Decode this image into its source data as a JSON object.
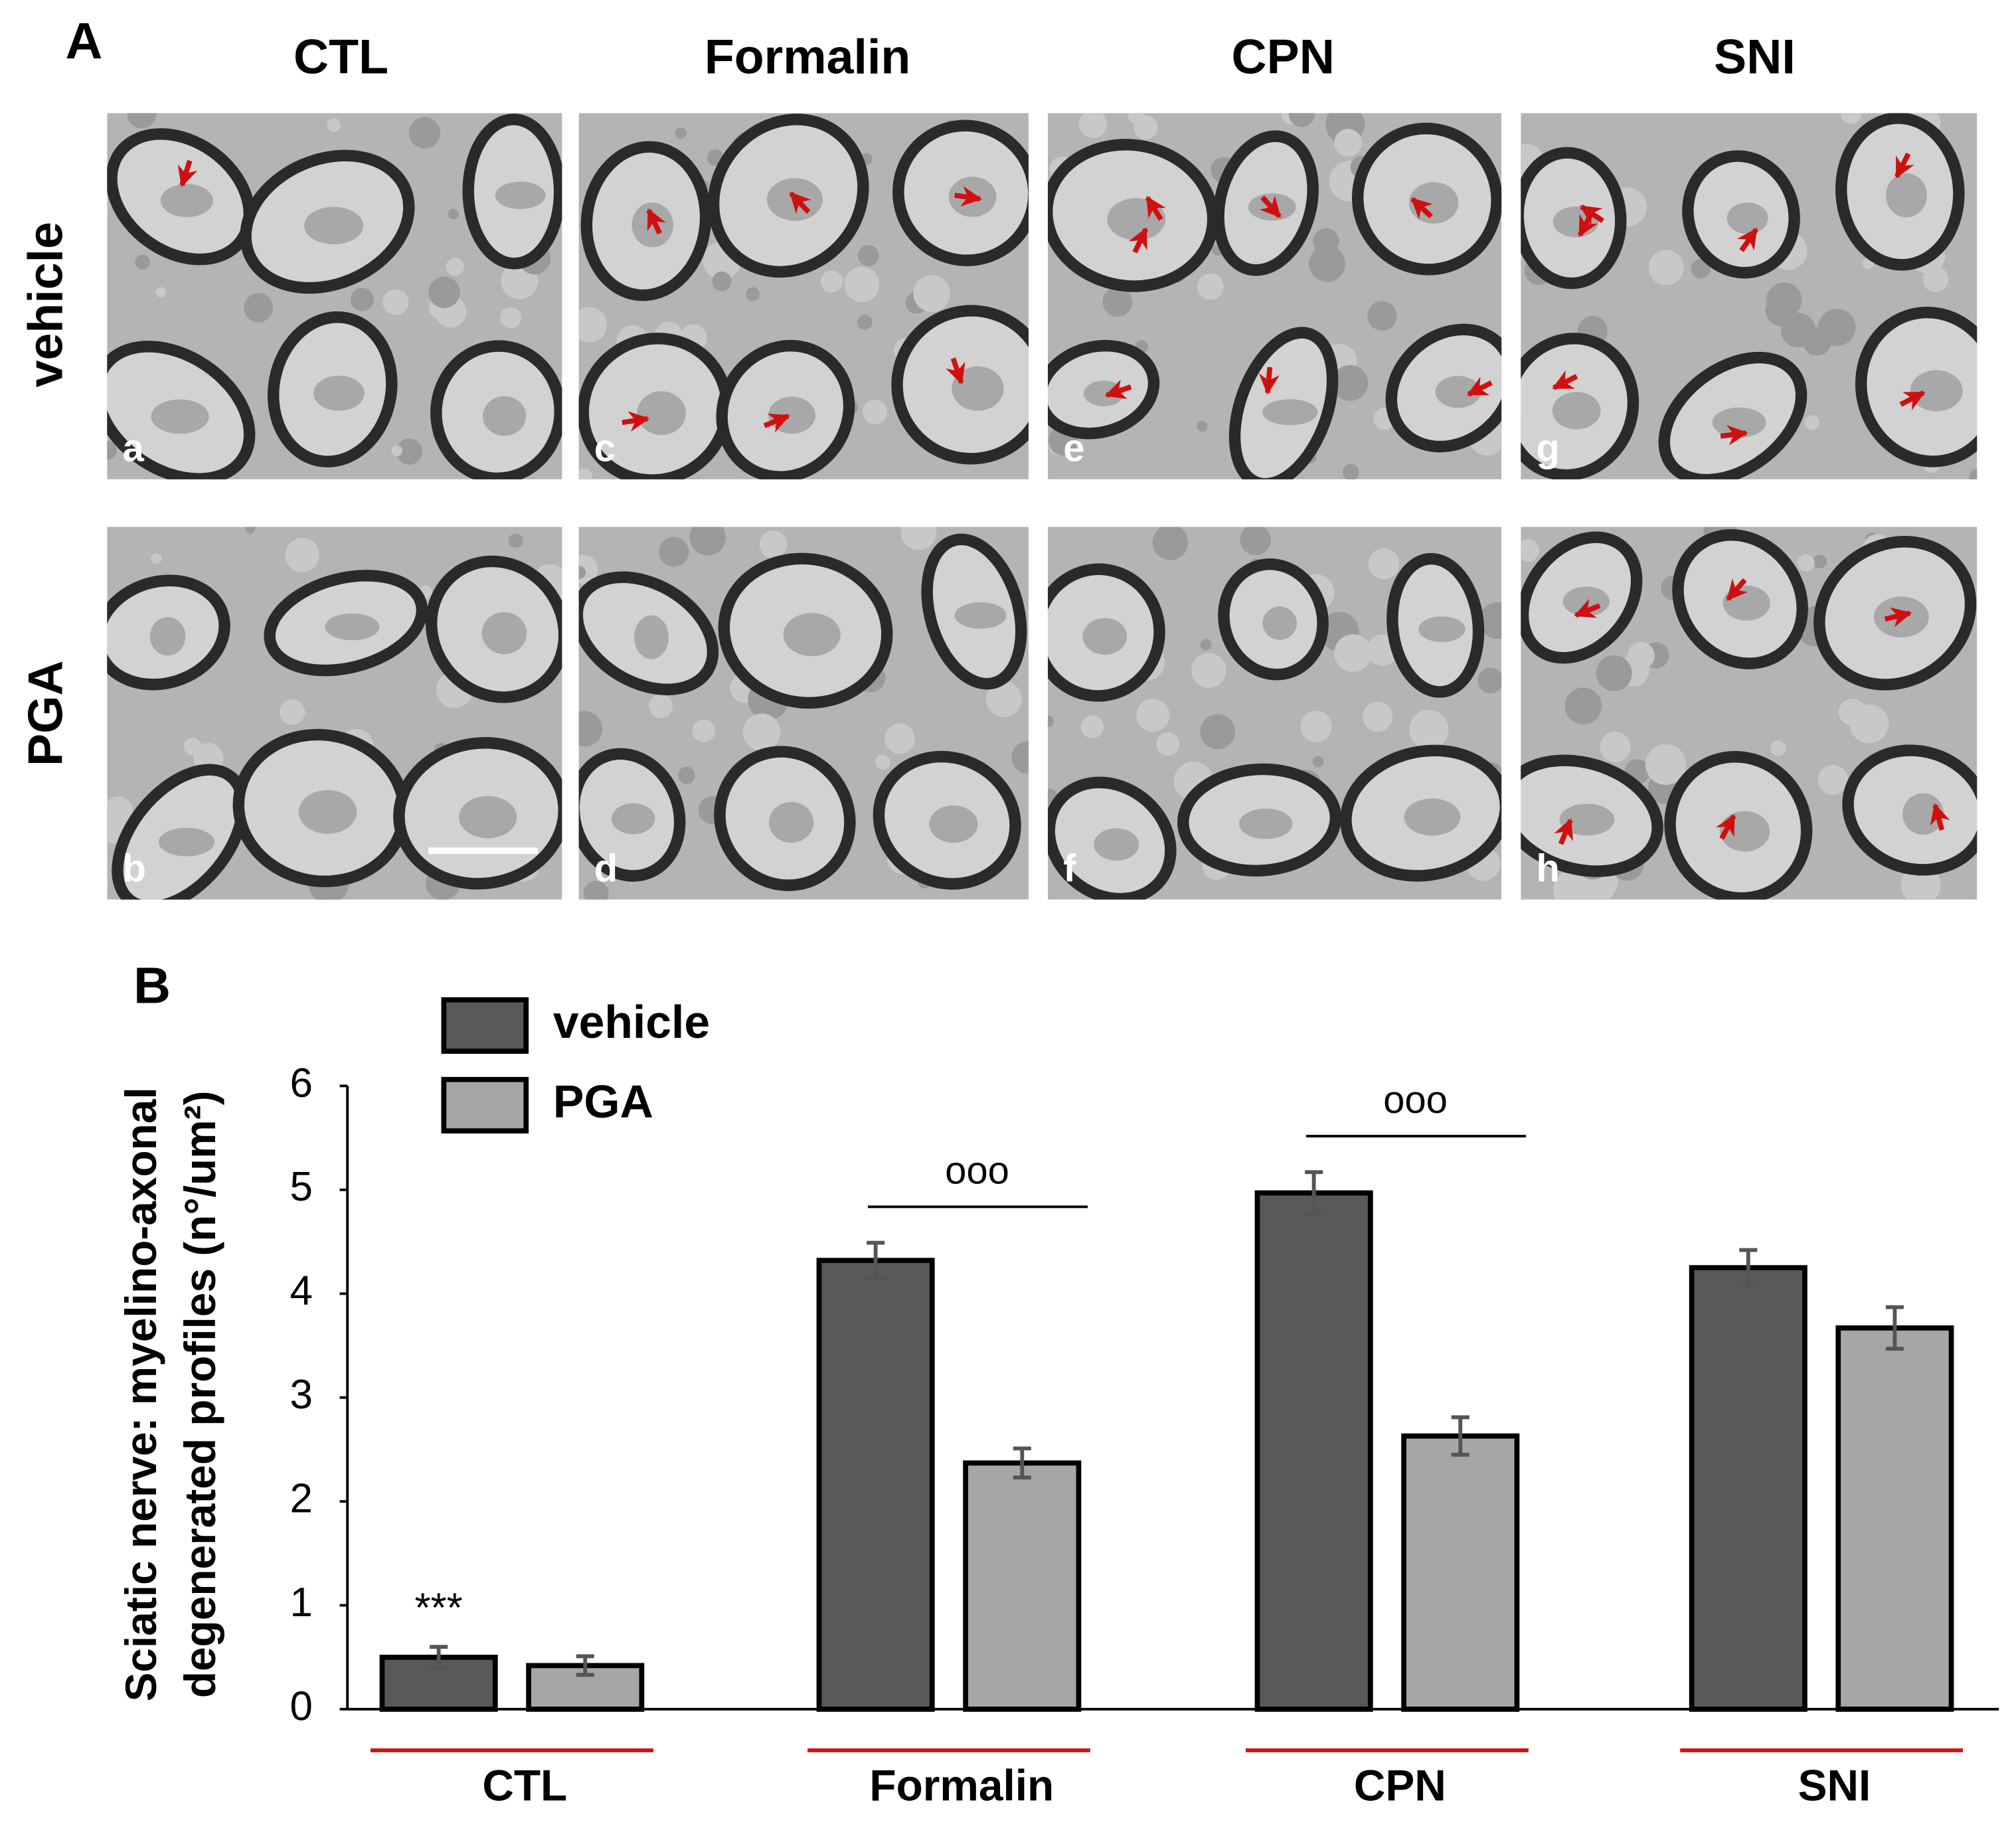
{
  "panel_a": {
    "label": "A",
    "columns": [
      "CTL",
      "Formalin",
      "CPN",
      "SNI"
    ],
    "rows": [
      "vehicle",
      "PGA"
    ],
    "panels": [
      "a",
      "b",
      "c",
      "d",
      "e",
      "f",
      "g",
      "h"
    ]
  },
  "chart_data": {
    "type": "bar",
    "panel_label": "B",
    "ylabel": [
      "Sciatic nerve: myelino-axonal",
      "degenerated profiles (n°/um²)"
    ],
    "categories": [
      "CTL",
      "Formalin",
      "CPN",
      "SNI"
    ],
    "series": [
      {
        "name": "vehicle",
        "color": "#595959",
        "values": [
          0.5,
          4.32,
          4.97,
          4.25
        ],
        "errors": [
          0.1,
          0.17,
          0.2,
          0.17
        ]
      },
      {
        "name": "PGA",
        "color": "#a6a6a6",
        "values": [
          0.42,
          2.37,
          2.63,
          3.67
        ],
        "errors": [
          0.09,
          0.14,
          0.18,
          0.2
        ]
      }
    ],
    "annotations": [
      "***",
      "ooo",
      "ooo"
    ],
    "ylim": [
      0,
      6
    ],
    "yticks": [
      0,
      1,
      2,
      3,
      4,
      5,
      6
    ],
    "grid": false,
    "legend": "top-left"
  }
}
